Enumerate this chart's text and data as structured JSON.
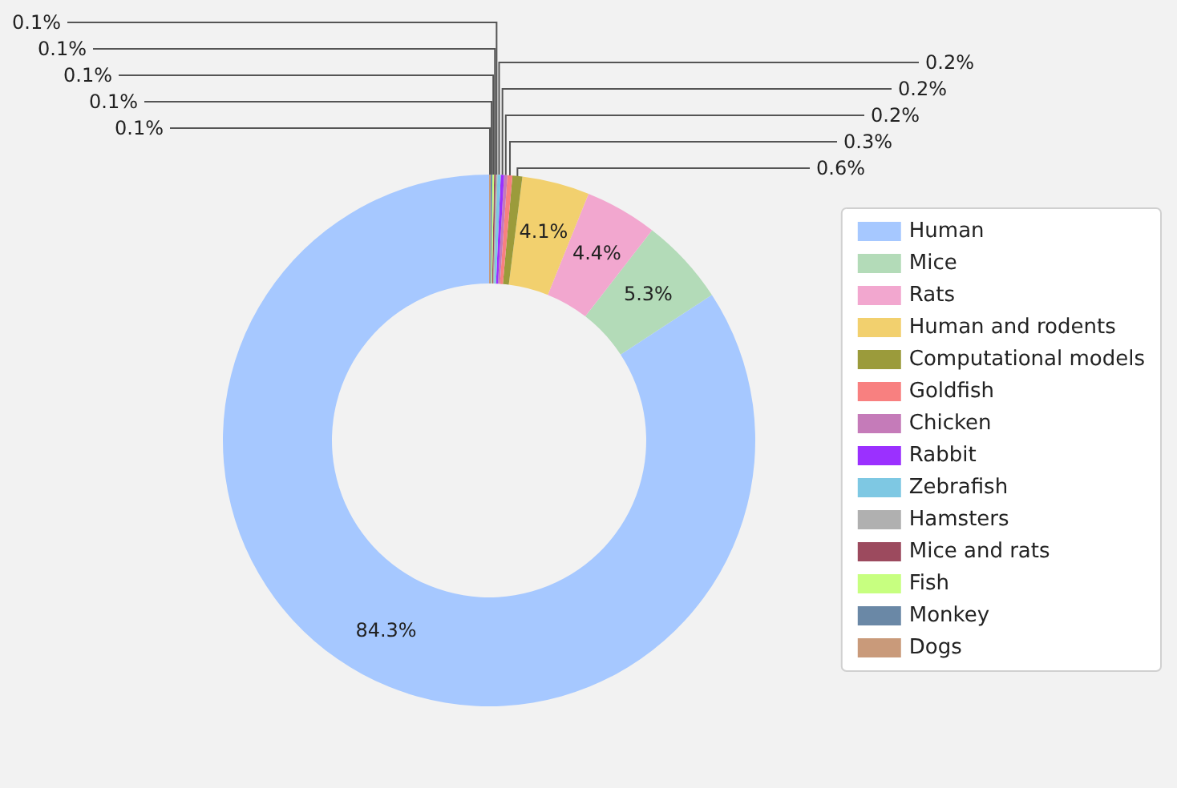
{
  "chart_data": {
    "type": "donut",
    "categories": [
      "Human",
      "Mice",
      "Rats",
      "Human and rodents",
      "Computational models",
      "Goldfish",
      "Chicken",
      "Rabbit",
      "Zebrafish",
      "Hamsters",
      "Mice and rats",
      "Fish",
      "Monkey",
      "Dogs"
    ],
    "values": [
      84.3,
      5.3,
      4.4,
      4.1,
      0.6,
      0.3,
      0.2,
      0.2,
      0.2,
      0.1,
      0.1,
      0.1,
      0.1,
      0.1
    ],
    "value_labels": [
      "84.3%",
      "5.3%",
      "4.4%",
      "4.1%",
      "0.6%",
      "0.3%",
      "0.2%",
      "0.2%",
      "0.2%",
      "0.1%",
      "0.1%",
      "0.1%",
      "0.1%",
      "0.1%"
    ],
    "colors": [
      "#a6c8ff",
      "#b3dbb8",
      "#f2a7cf",
      "#f2d06e",
      "#9b9b3b",
      "#f88080",
      "#c57bb9",
      "#9b30ff",
      "#7ec8e3",
      "#b0b0b0",
      "#9c4a5e",
      "#c7ff80",
      "#6a88a6",
      "#c99a7a"
    ],
    "legend": "right"
  }
}
